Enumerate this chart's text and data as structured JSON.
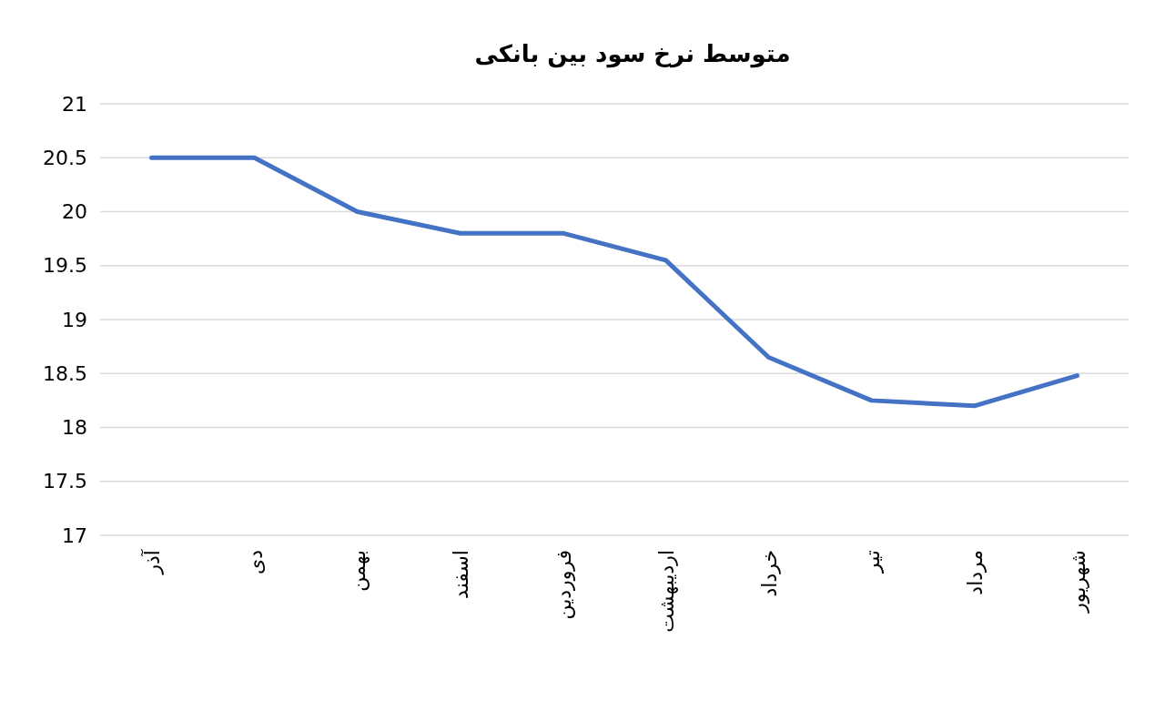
{
  "chart_data": {
    "type": "line",
    "title": "متوسط نرخ سود بین بانکی",
    "categories": [
      "آذر",
      "دی",
      "بهمن",
      "اسفند",
      "فروردین",
      "اردیبهشت",
      "خرداد",
      "تیر",
      "مرداد",
      "شهریور"
    ],
    "series": [
      {
        "color": "#4472c4",
        "values": [
          20.5,
          20.5,
          20.0,
          19.8,
          19.8,
          19.55,
          18.65,
          18.25,
          18.2,
          18.48
        ]
      }
    ],
    "ylim": [
      17,
      21
    ],
    "yticks": [
      17,
      17.5,
      18,
      18.5,
      19,
      19.5,
      20,
      20.5,
      21
    ],
    "grid": "y",
    "marker": "none",
    "line_style": "solid"
  }
}
